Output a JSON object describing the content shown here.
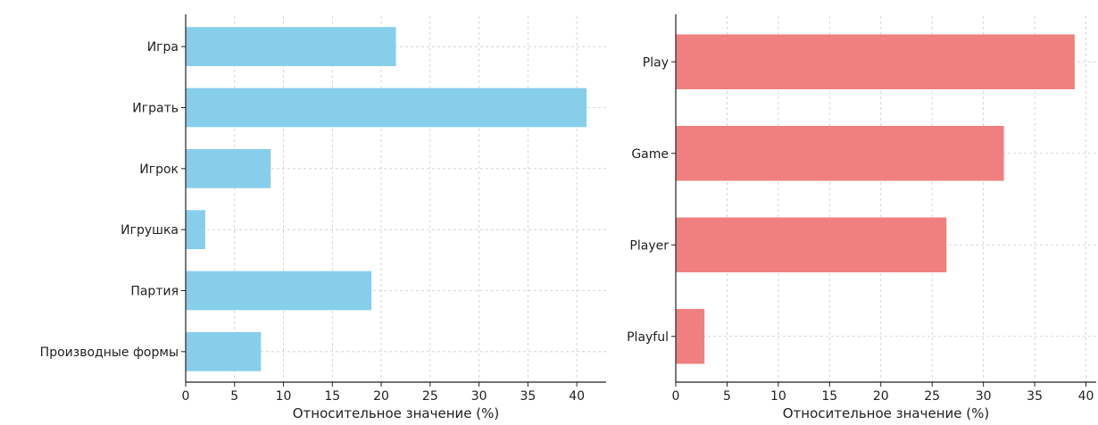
{
  "chart_data": [
    {
      "type": "bar",
      "orientation": "horizontal",
      "categories": [
        "Игра",
        "Играть",
        "Игрок",
        "Игрушка",
        "Партия",
        "Производные формы"
      ],
      "values": [
        21.5,
        41.0,
        8.7,
        2.0,
        19.0,
        7.7
      ],
      "xlabel": "Относительное значение (%)",
      "ylabel": "",
      "xlim": [
        0,
        43
      ],
      "xticks": [
        0,
        5,
        10,
        15,
        20,
        25,
        30,
        35,
        40
      ],
      "grid": true,
      "color": "#87ceeb"
    },
    {
      "type": "bar",
      "orientation": "horizontal",
      "categories": [
        "Play",
        "Game",
        "Player",
        "Playful"
      ],
      "values": [
        38.9,
        32.0,
        26.4,
        2.8
      ],
      "xlabel": "Относительное значение (%)",
      "ylabel": "",
      "xlim": [
        0,
        41
      ],
      "xticks": [
        0,
        5,
        10,
        15,
        20,
        25,
        30,
        35,
        40
      ],
      "grid": true,
      "color": "#f08080"
    }
  ]
}
